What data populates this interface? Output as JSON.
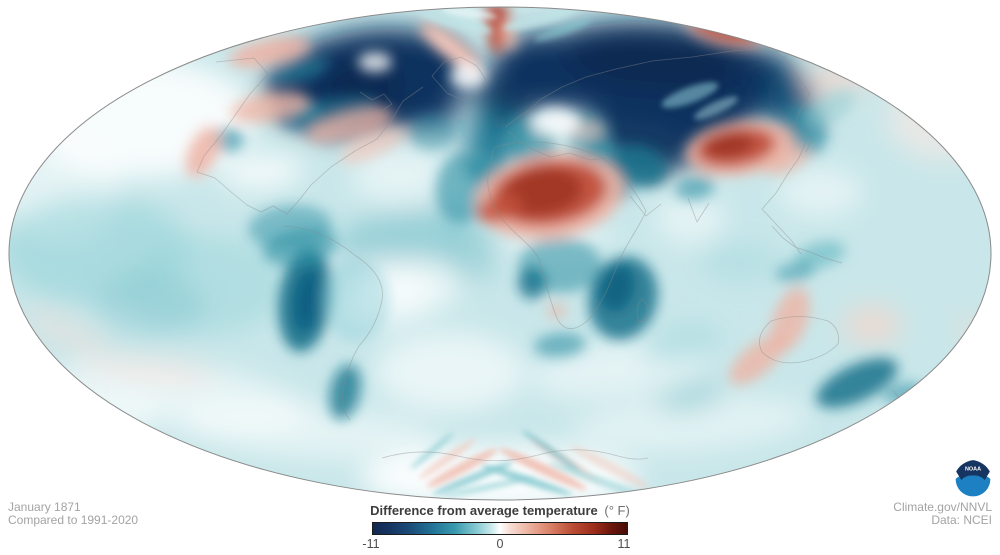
{
  "footer": {
    "date_line1": "January 1871",
    "date_line2": "Compared to 1991-2020",
    "credit_line1": "Climate.gov/NNVL",
    "credit_line2": "Data: NCEI"
  },
  "legend": {
    "title": "Difference from average temperature",
    "unit": "(° F)",
    "tick_min": "-11",
    "tick_mid": "0",
    "tick_max": "11",
    "gradient": [
      {
        "p": 0,
        "c": "#12294f"
      },
      {
        "p": 6,
        "c": "#15335f"
      },
      {
        "p": 14,
        "c": "#1b4a77"
      },
      {
        "p": 24,
        "c": "#247699"
      },
      {
        "p": 32,
        "c": "#3898ad"
      },
      {
        "p": 40,
        "c": "#7ec6cf"
      },
      {
        "p": 46,
        "c": "#c2e6e8"
      },
      {
        "p": 50,
        "c": "#ffffff"
      },
      {
        "p": 54,
        "c": "#f7ddd4"
      },
      {
        "p": 61,
        "c": "#edb4a2"
      },
      {
        "p": 70,
        "c": "#d97f66"
      },
      {
        "p": 79,
        "c": "#b94a33"
      },
      {
        "p": 87,
        "c": "#9c2d1c"
      },
      {
        "p": 94,
        "c": "#6b150c"
      },
      {
        "p": 100,
        "c": "#470d07"
      }
    ]
  },
  "logo": {
    "text": "NOAA",
    "navy": "#163560",
    "blue": "#1d80c3"
  },
  "map": {
    "base_color": "#c9e7ea",
    "outline_color": "#8a8a8a",
    "blobs": [
      [
        140,
        118,
        115,
        60,
        0,
        "#ffffff",
        0.85,
        "b"
      ],
      [
        60,
        190,
        60,
        50,
        0,
        "#ffffff",
        0.5,
        "b"
      ],
      [
        95,
        250,
        95,
        55,
        0,
        "#8ccfd6",
        0.5,
        "b"
      ],
      [
        205,
        285,
        80,
        50,
        0,
        "#9ad5da",
        0.5,
        "b"
      ],
      [
        150,
        305,
        55,
        32,
        0,
        "#7cc4cc",
        0.4,
        "b"
      ],
      [
        180,
        395,
        130,
        32,
        8,
        "#ffffff",
        0.55,
        "b"
      ],
      [
        80,
        425,
        80,
        25,
        -10,
        "#ffffff",
        0.5,
        "b"
      ],
      [
        310,
        432,
        130,
        26,
        4,
        "#ffffff",
        0.5,
        "b"
      ],
      [
        450,
        372,
        75,
        40,
        0,
        "#ffffff",
        0.6,
        "b"
      ],
      [
        690,
        424,
        120,
        26,
        -4,
        "#ffffff",
        0.45,
        "b"
      ],
      [
        620,
        368,
        90,
        28,
        -8,
        "#ffffff",
        0.5,
        "b"
      ],
      [
        400,
        175,
        48,
        30,
        0,
        "#ffffff",
        0.5,
        "b"
      ],
      [
        262,
        172,
        42,
        18,
        -5,
        "#ffffff",
        0.75,
        "b"
      ],
      [
        390,
        282,
        34,
        26,
        0,
        "#ffffff",
        0.6,
        "b"
      ],
      [
        405,
        235,
        70,
        26,
        -8,
        "#74c0ca",
        0.55,
        "b"
      ],
      [
        400,
        297,
        62,
        26,
        -15,
        "#ffffff",
        0.65,
        "b"
      ],
      [
        470,
        252,
        30,
        28,
        0,
        "#7cc3cc",
        0.5,
        "b"
      ],
      [
        820,
        192,
        42,
        24,
        0,
        "#ffffff",
        0.5,
        "b"
      ],
      [
        945,
        118,
        58,
        42,
        0,
        "#f9e8e3",
        0.65,
        "b"
      ],
      [
        835,
        82,
        45,
        20,
        -25,
        "#f4d6cd",
        0.7,
        "b"
      ],
      [
        872,
        325,
        30,
        20,
        0,
        "#f6d4c9",
        0.7,
        "b"
      ],
      [
        972,
        331,
        17,
        11,
        60,
        "#f4d7ce",
        0.65,
        "b"
      ],
      [
        65,
        332,
        45,
        12,
        25,
        "#f6ddd6",
        0.55,
        "b"
      ],
      [
        150,
        370,
        70,
        12,
        6,
        "#f8e4de",
        0.6,
        "b"
      ],
      [
        500,
        478,
        140,
        32,
        0,
        "#ffffff",
        0.9,
        "b"
      ],
      [
        680,
        345,
        40,
        16,
        -10,
        "#8ccfd6",
        0.5,
        "b"
      ],
      [
        690,
        398,
        35,
        14,
        -10,
        "#7cc4cc",
        0.5,
        "b"
      ],
      [
        740,
        262,
        40,
        20,
        0,
        "#a5dade",
        0.5,
        "b"
      ],
      [
        555,
        240,
        60,
        14,
        -5,
        "#ffffff",
        0.5,
        "b"
      ],
      [
        690,
        218,
        34,
        26,
        0,
        "#ffffff",
        0.5,
        "b"
      ],
      [
        368,
        82,
        105,
        52,
        -8,
        "#10335e",
        1,
        "b"
      ],
      [
        380,
        88,
        60,
        34,
        -5,
        "#0b2a52",
        0.9,
        "b"
      ],
      [
        428,
        65,
        35,
        25,
        0,
        "#10335e",
        0.95,
        "b"
      ],
      [
        425,
        108,
        34,
        24,
        0,
        "#0f3361",
        0.85,
        "b"
      ],
      [
        553,
        72,
        60,
        38,
        8,
        "#10335e",
        1,
        "b"
      ],
      [
        660,
        75,
        130,
        52,
        5,
        "#10335e",
        1,
        "b"
      ],
      [
        660,
        62,
        95,
        30,
        3,
        "#0b2a52",
        0.9,
        "b"
      ],
      [
        648,
        132,
        58,
        42,
        10,
        "#10335e",
        0.95,
        "b"
      ],
      [
        706,
        122,
        42,
        30,
        15,
        "#10335e",
        0.9,
        "b"
      ],
      [
        770,
        85,
        40,
        30,
        35,
        "#10335e",
        0.95,
        "b"
      ],
      [
        793,
        108,
        24,
        38,
        -18,
        "#135a80",
        0.8,
        "b"
      ],
      [
        505,
        100,
        30,
        34,
        0,
        "#10335e",
        0.95,
        "b"
      ],
      [
        492,
        143,
        26,
        34,
        12,
        "#136e8c",
        0.85,
        "b"
      ],
      [
        462,
        188,
        26,
        36,
        8,
        "#2d8fa3",
        0.6,
        "m"
      ],
      [
        485,
        168,
        17,
        13,
        0,
        "#2d8fa3",
        0.65,
        "m"
      ],
      [
        530,
        140,
        26,
        24,
        0,
        "#2d8fa3",
        0.7,
        "m"
      ],
      [
        600,
        157,
        20,
        14,
        -10,
        "#2d8fa3",
        0.7,
        "m"
      ],
      [
        640,
        166,
        28,
        20,
        20,
        "#15718b",
        0.85,
        "m"
      ],
      [
        612,
        188,
        20,
        14,
        10,
        "#2d8fa3",
        0.8,
        "m"
      ],
      [
        590,
        138,
        22,
        26,
        0,
        "#2d8fa3",
        0.55,
        "m"
      ],
      [
        695,
        188,
        20,
        12,
        -10,
        "#2d8fa3",
        0.6,
        "m"
      ],
      [
        805,
        130,
        20,
        26,
        -25,
        "#2d8fa3",
        0.6,
        "m"
      ],
      [
        820,
        255,
        26,
        13,
        -15,
        "#5fb5c0",
        0.6,
        "m"
      ],
      [
        795,
        272,
        20,
        10,
        -10,
        "#2d8fa3",
        0.5,
        "m"
      ],
      [
        623,
        298,
        34,
        42,
        15,
        "#15718b",
        0.85,
        "m"
      ],
      [
        617,
        288,
        17,
        24,
        15,
        "#0f5e7e",
        0.8,
        "m"
      ],
      [
        560,
        265,
        42,
        28,
        0,
        "#2d8fa3",
        0.55,
        "m"
      ],
      [
        532,
        283,
        14,
        16,
        0,
        "#15718b",
        0.8,
        "m"
      ],
      [
        560,
        345,
        26,
        12,
        -5,
        "#2d8fa3",
        0.6,
        "m"
      ],
      [
        305,
        300,
        26,
        52,
        7,
        "#15718b",
        0.9,
        "m"
      ],
      [
        307,
        300,
        13,
        32,
        7,
        "#0e5a80",
        0.85,
        "m"
      ],
      [
        300,
        247,
        38,
        18,
        -10,
        "#2d8fa3",
        0.6,
        "m"
      ],
      [
        345,
        392,
        15,
        28,
        12,
        "#15718b",
        0.75,
        "m"
      ],
      [
        356,
        300,
        34,
        42,
        0,
        "#8ccfd6",
        0.45,
        "m"
      ],
      [
        290,
        227,
        42,
        22,
        -5,
        "#2d8fa3",
        0.5,
        "m"
      ],
      [
        857,
        383,
        44,
        18,
        -25,
        "#15718b",
        0.85,
        "m"
      ],
      [
        903,
        393,
        20,
        9,
        -15,
        "#2d8fa3",
        0.6,
        "m"
      ],
      [
        228,
        140,
        16,
        12,
        0,
        "#2d8fa3",
        0.65,
        "m"
      ],
      [
        307,
        111,
        14,
        10,
        0,
        "#2d8fa3",
        0.65,
        "m"
      ],
      [
        830,
        108,
        28,
        14,
        -30,
        "#8ccfd6",
        0.5,
        "m"
      ],
      [
        330,
        112,
        50,
        14,
        -10,
        "#2d8fa3",
        0.5,
        "m"
      ],
      [
        432,
        132,
        24,
        18,
        0,
        "#2d8fa3",
        0.45,
        "m"
      ],
      [
        300,
        70,
        30,
        12,
        -15,
        "#2d8fa3",
        0.5,
        "m"
      ],
      [
        550,
        196,
        74,
        42,
        -8,
        "#eeb3a4",
        0.9,
        "m"
      ],
      [
        549,
        193,
        58,
        32,
        -8,
        "#c1513c",
        0.95,
        "m"
      ],
      [
        543,
        192,
        40,
        23,
        -8,
        "#a03524",
        0.9,
        "m"
      ],
      [
        500,
        208,
        24,
        13,
        -20,
        "#c1513c",
        0.8,
        "m"
      ],
      [
        740,
        148,
        55,
        27,
        -8,
        "#eeb3a4",
        0.9,
        "m"
      ],
      [
        736,
        147,
        40,
        19,
        -8,
        "#c1513c",
        0.95,
        "m"
      ],
      [
        729,
        145,
        25,
        12,
        -8,
        "#9c3322",
        0.85,
        "m"
      ],
      [
        787,
        161,
        24,
        11,
        -25,
        "#eeb3a4",
        0.7,
        "m"
      ],
      [
        270,
        107,
        40,
        14,
        -10,
        "#efb6a7",
        0.8,
        "m"
      ],
      [
        350,
        125,
        45,
        14,
        -15,
        "#efb6a7",
        0.75,
        "m"
      ],
      [
        372,
        146,
        35,
        11,
        -25,
        "#f3cabf",
        0.7,
        "m"
      ],
      [
        203,
        152,
        14,
        27,
        25,
        "#eeb3a4",
        0.85,
        "m"
      ],
      [
        270,
        52,
        42,
        13,
        -12,
        "#eeb3a4",
        0.85,
        "m"
      ],
      [
        452,
        48,
        40,
        11,
        38,
        "#eeb3a4",
        0.9,
        "m"
      ],
      [
        450,
        47,
        28,
        6,
        38,
        "#f6cfc4",
        0.9,
        "m"
      ],
      [
        497,
        30,
        9,
        24,
        0,
        "#c1513c",
        0.95,
        "m"
      ],
      [
        497,
        14,
        13,
        10,
        0,
        "#b03a2a",
        0.9,
        "m"
      ],
      [
        509,
        34,
        7,
        17,
        -12,
        "#eeb3a4",
        0.8,
        "m"
      ],
      [
        727,
        28,
        45,
        20,
        12,
        "#eeb3a4",
        0.55,
        "m"
      ],
      [
        727,
        28,
        36,
        14,
        12,
        "#c1513c",
        0.85,
        "m"
      ],
      [
        557,
        311,
        10,
        7,
        0,
        "#eeb3a4",
        0.7,
        "m"
      ],
      [
        585,
        130,
        20,
        9,
        0,
        "#f3cabf",
        0.6,
        "m"
      ],
      [
        555,
        122,
        24,
        14,
        0,
        "#ffffff",
        0.85,
        "m"
      ],
      [
        375,
        62,
        17,
        10,
        0,
        "#ffffff",
        0.8,
        "m"
      ],
      [
        468,
        76,
        18,
        13,
        0,
        "#ffffff",
        0.85,
        "m"
      ],
      [
        790,
        320,
        17,
        34,
        20,
        "#eeb3a4",
        0.8,
        "m"
      ],
      [
        757,
        360,
        34,
        15,
        -40,
        "#eeb3a4",
        0.8,
        "m"
      ],
      [
        690,
        95,
        30,
        8,
        -20,
        "#9fe0e8",
        0.5,
        "s"
      ],
      [
        716,
        108,
        24,
        6,
        -25,
        "#bfeaee",
        0.45,
        "s"
      ],
      [
        455,
        22,
        38,
        6,
        15,
        "#bfe4e6",
        0.8,
        "s"
      ],
      [
        470,
        13,
        28,
        4,
        8,
        "#e8f6f6",
        0.8,
        "s"
      ],
      [
        540,
        19,
        38,
        6,
        -15,
        "#bfe4e6",
        0.8,
        "s"
      ],
      [
        563,
        30,
        30,
        5,
        -20,
        "#8ccfd6",
        0.5,
        "s"
      ],
      [
        462,
        468,
        40,
        5,
        -28,
        "#efb6a7",
        0.75,
        "s"
      ],
      [
        447,
        459,
        34,
        4,
        -35,
        "#f3cabf",
        0.7,
        "s"
      ],
      [
        473,
        478,
        44,
        4,
        -22,
        "#7cc4cc",
        0.75,
        "s"
      ],
      [
        488,
        487,
        48,
        3,
        -12,
        "#9fd6da",
        0.8,
        "s"
      ],
      [
        432,
        451,
        28,
        3,
        -40,
        "#7cc4cc",
        0.6,
        "s"
      ],
      [
        543,
        469,
        48,
        5,
        25,
        "#efb6a7",
        0.8,
        "s"
      ],
      [
        566,
        461,
        42,
        4,
        32,
        "#f3cabf",
        0.7,
        "s"
      ],
      [
        527,
        480,
        48,
        4,
        18,
        "#7cc4cc",
        0.8,
        "s"
      ],
      [
        553,
        452,
        38,
        3,
        35,
        "#5fb5c0",
        0.65,
        "s"
      ],
      [
        610,
        467,
        44,
        5,
        28,
        "#f3cabf",
        0.55,
        "s"
      ],
      [
        597,
        480,
        52,
        4,
        20,
        "#9fd6da",
        0.7,
        "s"
      ]
    ]
  }
}
